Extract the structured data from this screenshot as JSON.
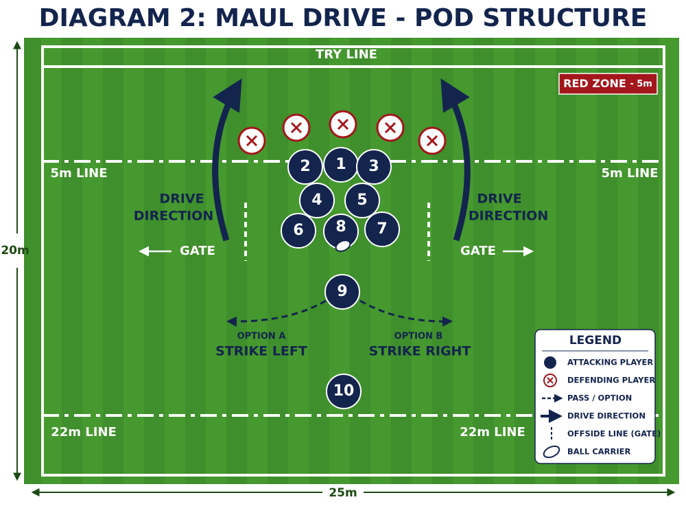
{
  "title": "DIAGRAM 2: MAUL DRIVE - POD STRUCTURE",
  "dimensions": {
    "height": "20m",
    "width": "25m"
  },
  "field": {
    "try_line": "TRY LINE",
    "five_line_left": "5m LINE",
    "five_line_right": "5m LINE",
    "twenty_two_left": "22m LINE",
    "twenty_two_right": "22m LINE",
    "red_zone": {
      "label": "RED ZONE",
      "distance": "- 5m"
    }
  },
  "annotations": {
    "drive_left": [
      "DRIVE",
      "DIRECTION"
    ],
    "drive_right": [
      "DRIVE",
      "DIRECTION"
    ],
    "gate_left": "GATE",
    "gate_right": "GATE",
    "option_a": {
      "label": "OPTION A",
      "action": "STRIKE LEFT"
    },
    "option_b": {
      "label": "OPTION B",
      "action": "STRIKE RIGHT"
    }
  },
  "players": [
    "1",
    "2",
    "3",
    "4",
    "5",
    "6",
    "7",
    "8",
    "9",
    "10"
  ],
  "legend": {
    "title": "LEGEND",
    "items": [
      "ATTACKING PLAYER",
      "DEFENDING PLAYER",
      "PASS / OPTION",
      "DRIVE DIRECTION",
      "OFFSIDE LINE (GATE)",
      "BALL CARRIER"
    ]
  }
}
